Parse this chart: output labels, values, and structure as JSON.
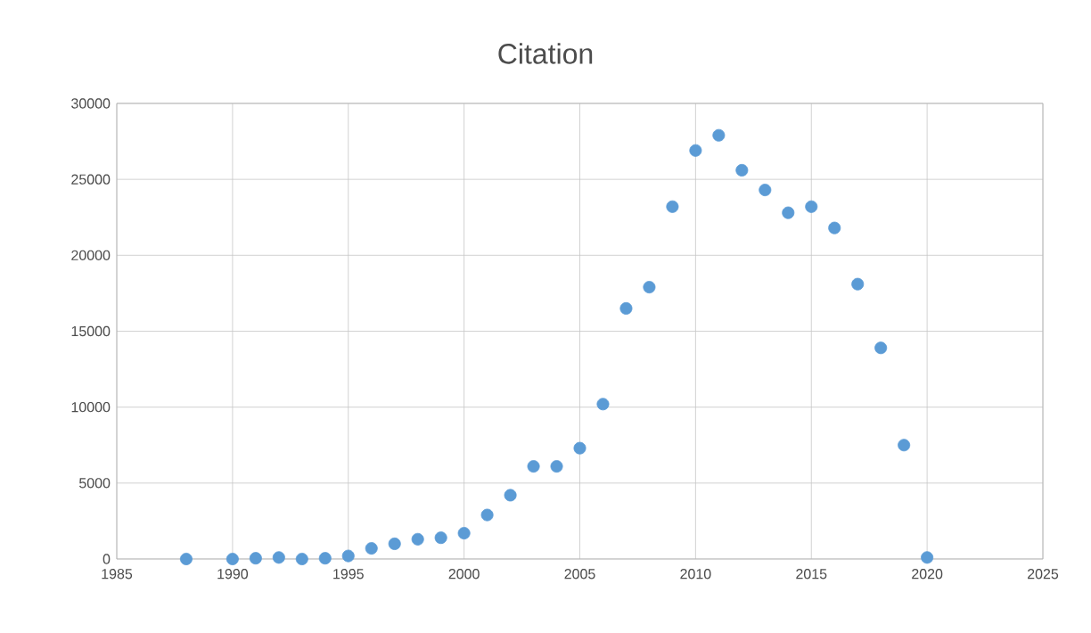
{
  "chart_data": {
    "type": "scatter",
    "title": "Citation",
    "x": [
      1988,
      1990,
      1991,
      1992,
      1993,
      1994,
      1995,
      1996,
      1997,
      1998,
      1999,
      2000,
      2001,
      2002,
      2003,
      2004,
      2005,
      2006,
      2007,
      2008,
      2009,
      2010,
      2011,
      2012,
      2013,
      2014,
      2015,
      2016,
      2017,
      2018,
      2019,
      2020
    ],
    "values": [
      0,
      0,
      50,
      100,
      0,
      50,
      200,
      700,
      1000,
      1300,
      1400,
      1700,
      2900,
      4200,
      6100,
      6100,
      7300,
      10200,
      16500,
      17900,
      23200,
      26900,
      27900,
      25600,
      24300,
      22800,
      23200,
      21800,
      18100,
      13900,
      7500,
      100
    ],
    "color": "#5b9bd5",
    "marker": "circle",
    "xlim": [
      1985,
      2025
    ],
    "xticks": [
      1985,
      1990,
      1995,
      2000,
      2005,
      2010,
      2015,
      2020,
      2025
    ],
    "ylim": [
      0,
      30000
    ],
    "yticks": [
      0,
      5000,
      10000,
      15000,
      20000,
      25000,
      30000
    ],
    "grid": true
  }
}
